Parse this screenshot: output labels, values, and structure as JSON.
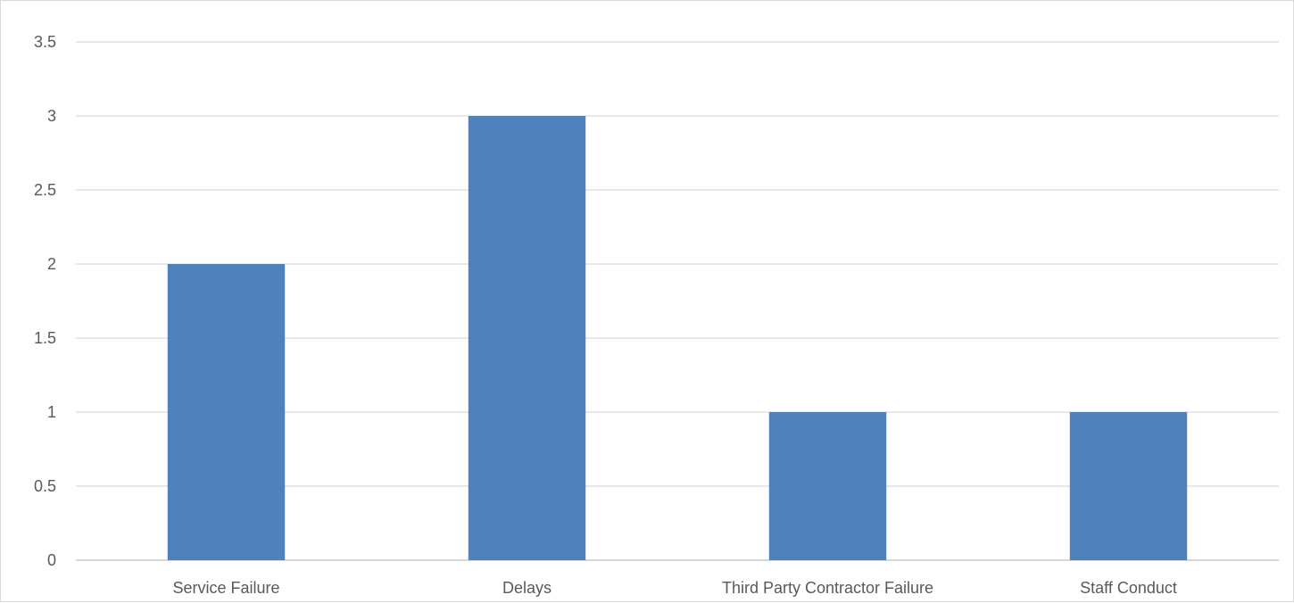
{
  "chart_data": {
    "type": "bar",
    "title": "",
    "xlabel": "",
    "ylabel": "",
    "categories": [
      "Service Failure",
      "Delays",
      "Third Party Contractor Failure",
      "Staff Conduct"
    ],
    "values": [
      2,
      3,
      1,
      1
    ],
    "ylim": [
      0,
      3.5
    ],
    "y_ticks": [
      "0",
      "0.5",
      "1",
      "1.5",
      "2",
      "2.5",
      "3",
      "3.5"
    ],
    "grid": true,
    "legend": "none",
    "colors": {
      "bar": "#4f81bd",
      "grid": "#d9d9d9",
      "text": "#595959"
    }
  }
}
